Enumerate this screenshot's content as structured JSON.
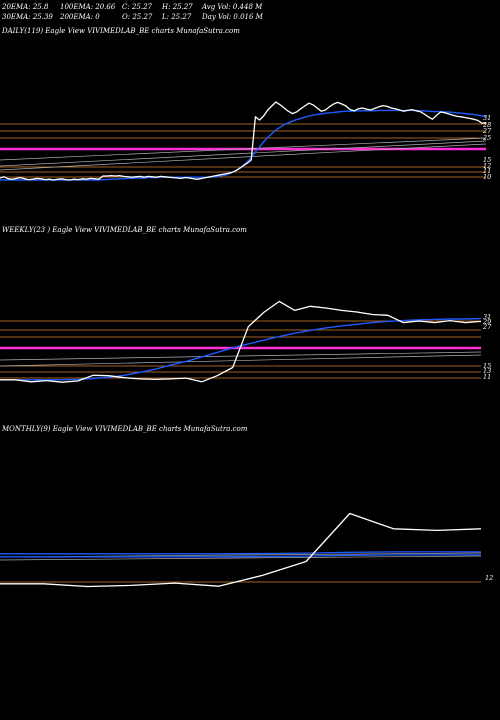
{
  "header": {
    "row1": [
      {
        "key": "ema20",
        "text": "20EMA: 25.8"
      },
      {
        "key": "ema100",
        "text": "100EMA: 20.66"
      },
      {
        "key": "close",
        "text": "C: 25.27"
      },
      {
        "key": "high",
        "text": "H: 25.27"
      },
      {
        "key": "avgvol",
        "text": "Avg Vol: 0.448  M"
      }
    ],
    "row2": [
      {
        "key": "ema30",
        "text": "30EMA: 25.39"
      },
      {
        "key": "ema200",
        "text": "200EMA: 0"
      },
      {
        "key": "open",
        "text": "O: 25.27"
      },
      {
        "key": "low",
        "text": "L: 25.27"
      },
      {
        "key": "dayvol",
        "text": "Day Vol: 0.016  M"
      }
    ]
  },
  "chart_data": [
    {
      "type": "line",
      "title": "DAILY(119) Eagle   View  VIVIMEDLAB_BE charts MunafaSutra.com",
      "y_labels": [
        "31",
        "28",
        "27",
        "25",
        "15",
        "12",
        "11",
        "10"
      ],
      "price": [
        11.5,
        11.8,
        11.3,
        11.2,
        11.4,
        11.6,
        11.3,
        11.1,
        11.2,
        11.4,
        11.3,
        11.1,
        11.2,
        11.0,
        11.2,
        11.3,
        11.1,
        11.0,
        11.2,
        11.1,
        11.3,
        11.2,
        11.4,
        11.3,
        11.2,
        12.0,
        12.0,
        12.1,
        12.0,
        12.1,
        11.9,
        11.8,
        11.7,
        11.8,
        11.9,
        11.7,
        11.9,
        11.8,
        11.7,
        11.9,
        11.8,
        11.7,
        11.6,
        11.5,
        11.4,
        11.6,
        11.5,
        11.3,
        11.2,
        11.4,
        11.6,
        11.8,
        12.0,
        12.2,
        12.4,
        12.6,
        12.8,
        13.2,
        13.8,
        14.5,
        15.2,
        16.0,
        26.8,
        26.0,
        27.0,
        28.5,
        29.5,
        30.5,
        29.8,
        29.0,
        28.2,
        27.6,
        28.0,
        28.8,
        29.5,
        30.2,
        29.8,
        29.0,
        28.2,
        28.5,
        29.3,
        30.0,
        30.4,
        30.0,
        29.5,
        28.6,
        28.3,
        28.8,
        29.0,
        28.7,
        28.5,
        28.9,
        29.3,
        29.6,
        29.4,
        29.0,
        28.8,
        28.5,
        28.2,
        28.4,
        28.6,
        28.3,
        28.1,
        27.5,
        26.8,
        26.2,
        27.2,
        28.0,
        27.8,
        27.5,
        27.2,
        26.9,
        26.8,
        26.6,
        26.4,
        26.2,
        25.9,
        25.2,
        25.27
      ],
      "ema_blue": [
        11.0,
        11.0,
        11.0,
        11.0,
        11.0,
        11.0,
        11.0,
        11.0,
        11.0,
        11.0,
        11.0,
        11.0,
        11.0,
        11.0,
        11.0,
        11.0,
        11.0,
        11.0,
        11.0,
        11.0,
        11.0,
        11.0,
        11.0,
        11.0,
        11.0,
        11.1,
        11.1,
        11.2,
        11.2,
        11.3,
        11.3,
        11.4,
        11.4,
        11.5,
        11.5,
        11.5,
        11.6,
        11.6,
        11.6,
        11.7,
        11.7,
        11.7,
        11.7,
        11.7,
        11.7,
        11.7,
        11.7,
        11.7,
        11.7,
        11.7,
        11.7,
        11.7,
        11.8,
        11.9,
        12.1,
        12.3,
        12.7,
        13.2,
        13.8,
        14.6,
        15.5,
        16.6,
        18.0,
        19.3,
        20.5,
        21.6,
        22.6,
        23.5,
        24.2,
        24.8,
        25.3,
        25.7,
        26.1,
        26.4,
        26.7,
        27.0,
        27.2,
        27.4,
        27.5,
        27.7,
        27.8,
        27.9,
        28.0,
        28.1,
        28.2,
        28.2,
        28.2,
        28.3,
        28.3,
        28.3,
        28.3,
        28.3,
        28.4,
        28.4,
        28.4,
        28.4,
        28.4,
        28.4,
        28.4,
        28.4,
        28.4,
        28.4,
        28.3,
        28.3,
        28.2,
        28.1,
        28.1,
        28.1,
        28.0,
        28.0,
        27.9,
        27.8,
        27.7,
        27.6,
        27.5,
        27.4,
        27.2,
        27.0,
        26.9
      ]
    },
    {
      "type": "line",
      "title": "WEEKLY(23                                   ) Eagle   View  VIVIMEDLAB_BE charts MunafaSutra.com",
      "y_labels": [
        "31",
        "29",
        "27",
        "15",
        "13",
        "11"
      ],
      "price": [
        11.0,
        11.0,
        10.5,
        10.8,
        10.4,
        10.7,
        12.1,
        12.0,
        11.5,
        11.2,
        11.1,
        11.2,
        11.4,
        10.5,
        12.0,
        14.0,
        24.0,
        27.5,
        30.2,
        28.0,
        29.0,
        28.6,
        28.0,
        27.6,
        27.0,
        26.8,
        25.0,
        25.4,
        25.0,
        25.5,
        25.0,
        25.3
      ],
      "ema_blue": [
        11.0,
        11.0,
        11.0,
        11.0,
        11.0,
        11.1,
        11.3,
        11.6,
        12.1,
        12.8,
        13.6,
        14.6,
        15.5,
        16.6,
        17.7,
        18.8,
        19.8,
        20.7,
        21.6,
        22.4,
        23.1,
        23.7,
        24.2,
        24.6,
        25.0,
        25.3,
        25.5,
        25.7,
        25.8,
        25.9,
        25.9,
        26.0
      ]
    },
    {
      "type": "line",
      "title": "MONTHLY(9) Eagle   View  VIVIMEDLAB_BE charts MunafaSutra.com",
      "y_labels": [
        "12"
      ],
      "price": [
        12.2,
        12.2,
        11.5,
        11.8,
        12.4,
        11.6,
        14.4,
        18.0,
        30.5,
        26.5,
        26.1,
        26.5
      ],
      "ema_blue": [
        20.0,
        20.0,
        20.0,
        20.0,
        20.0,
        20.0,
        20.1,
        20.2,
        20.4,
        20.5,
        20.5,
        20.5
      ]
    }
  ],
  "colors": {
    "background": "#000000",
    "price_line": "#ffffff",
    "ema_blue": "#1e5bff",
    "ema_grey": "#b0b0b0",
    "orange_level": "#d9802a",
    "magenta_level": "#ff2fd6"
  }
}
